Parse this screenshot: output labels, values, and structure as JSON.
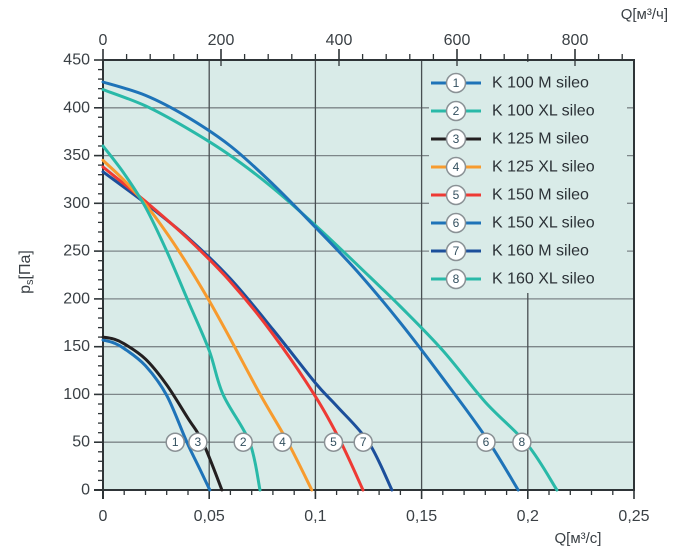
{
  "chart_data": {
    "type": "line",
    "title": "",
    "background_color": "#d9ebe8",
    "border_color": "#2e3437",
    "grid": {
      "horizontal_color": "#7d8689",
      "vertical_color": "#484f52",
      "grid_on": true
    },
    "y_axis": {
      "label_parts": {
        "base": "p",
        "sub": "s",
        "unit": "[Па]"
      },
      "min": 0,
      "max": 450,
      "major_step": 50,
      "minor_step": 10,
      "tick_labels": [
        "450",
        "400",
        "350",
        "300",
        "250",
        "200",
        "150",
        "100",
        "50",
        "0"
      ]
    },
    "x_axis_bottom": {
      "label": "Q[м³/c]",
      "min": 0,
      "max": 0.25,
      "major_step": 0.05,
      "minor_step": 0.01,
      "tick_labels": [
        "0",
        "0,05",
        "0,1",
        "0,15",
        "0,2",
        "0,25"
      ]
    },
    "x_axis_top": {
      "label": "Q[м³/ч]",
      "min": 0,
      "max": 900,
      "major_step": 200,
      "minor_step": 40,
      "tick_labels": [
        "0",
        "200",
        "400",
        "600",
        "800"
      ]
    },
    "marker_y": 50,
    "legend": {
      "position": "top-right",
      "marker_style": "numbered-circle"
    },
    "series": [
      {
        "number": "1",
        "name": "K 100 M sileo",
        "color": "#1e73b8",
        "marker_x": 0.034,
        "points": [
          [
            0,
            157
          ],
          [
            0.005,
            154
          ],
          [
            0.01,
            148
          ],
          [
            0.02,
            130
          ],
          [
            0.03,
            99
          ],
          [
            0.0395,
            50
          ],
          [
            0.046,
            20
          ],
          [
            0.0503,
            0
          ]
        ]
      },
      {
        "number": "2",
        "name": "K 100 XL sileo",
        "color": "#29b9a8",
        "marker_x": 0.066,
        "points": [
          [
            0,
            360
          ],
          [
            0.01,
            331
          ],
          [
            0.02,
            296
          ],
          [
            0.03,
            250
          ],
          [
            0.04,
            198
          ],
          [
            0.05,
            146
          ],
          [
            0.0565,
            100
          ],
          [
            0.069,
            50
          ],
          [
            0.0739,
            0
          ]
        ]
      },
      {
        "number": "3",
        "name": "K 125 M sileo",
        "color": "#231f20",
        "marker_x": 0.0447,
        "points": [
          [
            0,
            160
          ],
          [
            0.005,
            158
          ],
          [
            0.01,
            153
          ],
          [
            0.02,
            137
          ],
          [
            0.03,
            110
          ],
          [
            0.04,
            75
          ],
          [
            0.047,
            50
          ],
          [
            0.056,
            0
          ]
        ]
      },
      {
        "number": "4",
        "name": "K 125 XL sileo",
        "color": "#f79b2e",
        "marker_x": 0.0845,
        "points": [
          [
            0,
            345
          ],
          [
            0.01,
            324
          ],
          [
            0.02,
            299
          ],
          [
            0.03,
            269
          ],
          [
            0.04,
            235
          ],
          [
            0.05,
            198
          ],
          [
            0.06,
            158
          ],
          [
            0.074,
            100
          ],
          [
            0.087,
            50
          ],
          [
            0.0983,
            0
          ]
        ]
      },
      {
        "number": "5",
        "name": "K 150 M sileo",
        "color": "#ee3a34",
        "marker_x": 0.1085,
        "points": [
          [
            0,
            338
          ],
          [
            0.02,
            302
          ],
          [
            0.04,
            263
          ],
          [
            0.06,
            218
          ],
          [
            0.08,
            163
          ],
          [
            0.1,
            98
          ],
          [
            0.112,
            50
          ],
          [
            0.1224,
            0
          ]
        ]
      },
      {
        "number": "6",
        "name": "K 150 XL sileo",
        "color": "#1e73b8",
        "marker_x": 0.1803,
        "points": [
          [
            0,
            427
          ],
          [
            0.02,
            413
          ],
          [
            0.04,
            390
          ],
          [
            0.06,
            360
          ],
          [
            0.08,
            320
          ],
          [
            0.1,
            275
          ],
          [
            0.12,
            228
          ],
          [
            0.14,
            175
          ],
          [
            0.16,
            117
          ],
          [
            0.18,
            56
          ],
          [
            0.1955,
            0
          ]
        ]
      },
      {
        "number": "7",
        "name": "K 160 M sileo",
        "color": "#1c4f9b",
        "marker_x": 0.1225,
        "points": [
          [
            0,
            333
          ],
          [
            0.02,
            300
          ],
          [
            0.04,
            264
          ],
          [
            0.06,
            221
          ],
          [
            0.08,
            168
          ],
          [
            0.1,
            112
          ],
          [
            0.11,
            88
          ],
          [
            0.125,
            50
          ],
          [
            0.136,
            0
          ]
        ]
      },
      {
        "number": "8",
        "name": "K 160 XL sileo",
        "color": "#29b9a8",
        "marker_x": 0.1972,
        "points": [
          [
            0,
            419
          ],
          [
            0.02,
            402
          ],
          [
            0.04,
            378
          ],
          [
            0.06,
            350
          ],
          [
            0.08,
            316
          ],
          [
            0.1,
            277
          ],
          [
            0.12,
            235
          ],
          [
            0.14,
            192
          ],
          [
            0.16,
            146
          ],
          [
            0.18,
            92
          ],
          [
            0.2,
            47
          ],
          [
            0.2137,
            0
          ]
        ]
      }
    ],
    "draw_order": [
      "8",
      "6",
      "7",
      "5",
      "4",
      "2",
      "1",
      "3"
    ]
  },
  "styles": {
    "text_color": "#3a4045",
    "tick_color": "#2e3437",
    "marker_number_color": "#33505f",
    "marker_ring_color": "#8a9195",
    "legend_text_color": "#2b3136"
  }
}
